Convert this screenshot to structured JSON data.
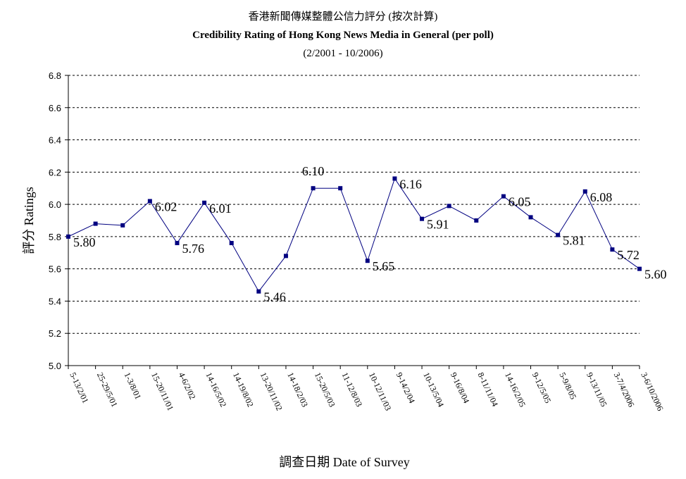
{
  "chart_data": {
    "type": "line",
    "title_zh": "香港新聞傳媒整體公信力評分 (按次計算)",
    "title": "Credibility Rating of Hong Kong News Media in General (per poll)",
    "subtitle": "(2/2001 - 10/2006)",
    "ylabel": "評分 Ratings",
    "xlabel": "調查日期 Date of Survey",
    "ylim": [
      5.0,
      6.8
    ],
    "yticks": [
      "5.0",
      "5.2",
      "5.4",
      "5.6",
      "5.8",
      "6.0",
      "6.2",
      "6.4",
      "6.6",
      "6.8"
    ],
    "grid": "horizontal-dashed",
    "categories": [
      "5-13/2/01",
      "25-29/5/01",
      "1-3/8/01",
      "15-20/11/01",
      "4-6/2/02",
      "14-16/5/02",
      "14-19/8/02",
      "13-20/11/02",
      "14-18/2/03",
      "15-20/5/03",
      "11-12/8/03",
      "10-12/11/03",
      "9-14/2/04",
      "10-13/5/04",
      "9-16/8/04",
      "8-11/11/04",
      "14-16/2/05",
      "9-12/5/05",
      "5-9/8/05",
      "9-13/11/05",
      "3-7/4/2006",
      "3-6/10/2006"
    ],
    "series": [
      {
        "color": "#000080",
        "values": [
          5.8,
          5.88,
          5.87,
          6.02,
          5.76,
          6.01,
          5.76,
          5.46,
          5.68,
          6.1,
          6.1,
          5.65,
          6.16,
          5.91,
          5.99,
          5.9,
          6.05,
          5.92,
          5.81,
          6.08,
          5.72,
          5.6
        ]
      }
    ],
    "data_labels": [
      {
        "index": 0,
        "text": "5.80",
        "pos": "right"
      },
      {
        "index": 3,
        "text": "6.02",
        "pos": "right"
      },
      {
        "index": 4,
        "text": "5.76",
        "pos": "right"
      },
      {
        "index": 5,
        "text": "6.01",
        "pos": "right"
      },
      {
        "index": 7,
        "text": "5.46",
        "pos": "right"
      },
      {
        "index": 9,
        "text": "6.10",
        "pos": "above"
      },
      {
        "index": 11,
        "text": "5.65",
        "pos": "right"
      },
      {
        "index": 12,
        "text": "6.16",
        "pos": "right"
      },
      {
        "index": 13,
        "text": "5.91",
        "pos": "right"
      },
      {
        "index": 16,
        "text": "6.05",
        "pos": "right"
      },
      {
        "index": 18,
        "text": "5.81",
        "pos": "right"
      },
      {
        "index": 19,
        "text": "6.08",
        "pos": "right"
      },
      {
        "index": 20,
        "text": "5.72",
        "pos": "right"
      },
      {
        "index": 21,
        "text": "5.60",
        "pos": "right"
      }
    ]
  }
}
